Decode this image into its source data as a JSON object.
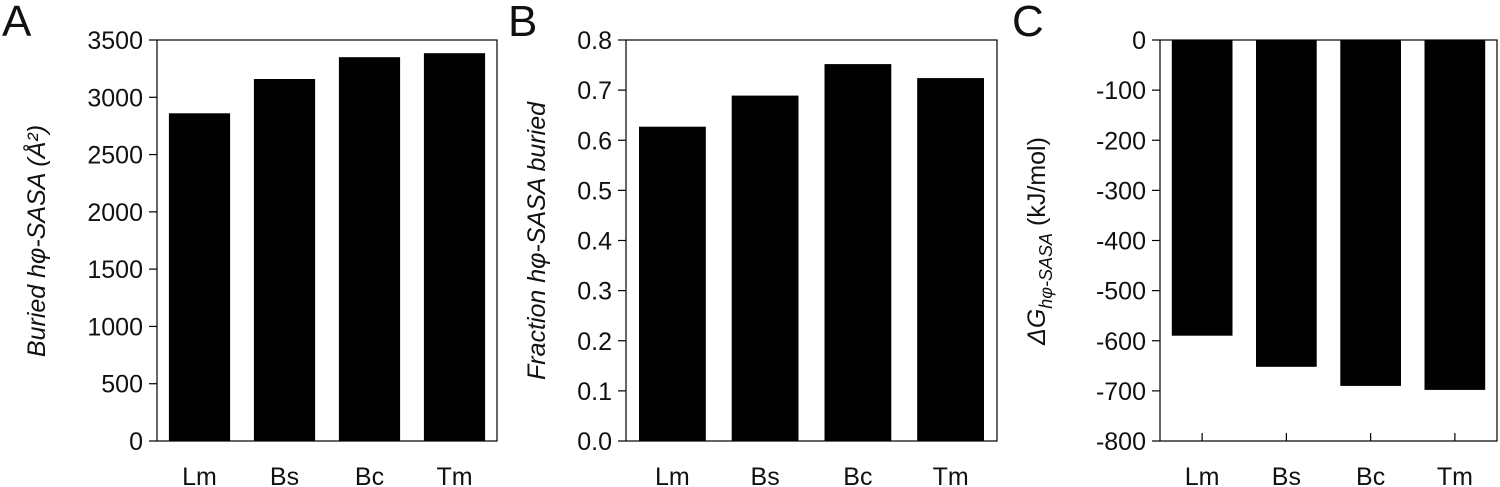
{
  "chart_data": [
    {
      "panel_letter": "A",
      "type": "bar",
      "categories": [
        "Lm",
        "Bs",
        "Bc",
        "Tm"
      ],
      "values": [
        2860,
        3160,
        3350,
        3385
      ],
      "ylabel": "Buried hφ-SASA (Å²)",
      "ylim": [
        0,
        3500
      ],
      "yticks": [
        "0",
        "500",
        "1000",
        "1500",
        "2000",
        "2500",
        "3000",
        "3500"
      ],
      "ytick_values": [
        0,
        500,
        1000,
        1500,
        2000,
        2500,
        3000,
        3500
      ],
      "grid": false,
      "bar_color": "#000000"
    },
    {
      "panel_letter": "B",
      "type": "bar",
      "categories": [
        "Lm",
        "Bs",
        "Bc",
        "Tm"
      ],
      "values": [
        0.627,
        0.689,
        0.752,
        0.724
      ],
      "ylabel": "Fraction hφ-SASA buried",
      "ylim": [
        0,
        0.8
      ],
      "yticks": [
        "0.0",
        "0.1",
        "0.2",
        "0.3",
        "0.4",
        "0.5",
        "0.6",
        "0.7",
        "0.8"
      ],
      "ytick_values": [
        0,
        0.1,
        0.2,
        0.3,
        0.4,
        0.5,
        0.6,
        0.7,
        0.8
      ],
      "grid": false,
      "bar_color": "#000000"
    },
    {
      "panel_letter": "C",
      "type": "bar",
      "categories": [
        "Lm",
        "Bs",
        "Bc",
        "Tm"
      ],
      "values": [
        -590,
        -652,
        -690,
        -698
      ],
      "ylabel_main": "ΔG",
      "ylabel_sub": "hφ-SASA",
      "ylabel_units": "(kJ/mol)",
      "ylim": [
        -800,
        0
      ],
      "yticks": [
        "0",
        "-100",
        "-200",
        "-300",
        "-400",
        "-500",
        "-600",
        "-700",
        "-800"
      ],
      "ytick_values": [
        0,
        -100,
        -200,
        -300,
        -400,
        -500,
        -600,
        -700,
        -800
      ],
      "grid": false,
      "bar_color": "#000000"
    }
  ]
}
